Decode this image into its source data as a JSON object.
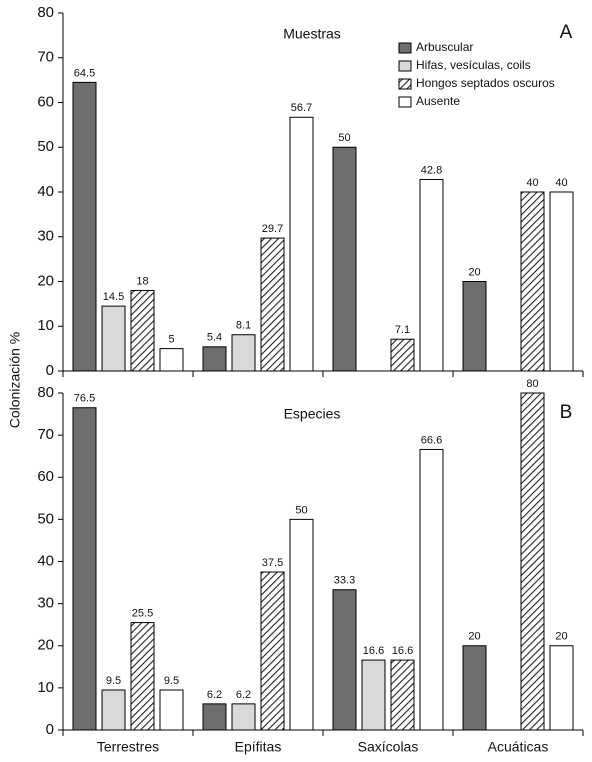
{
  "chart_data": [
    {
      "type": "bar",
      "title": "Muestras",
      "panel_label": "A",
      "ylabel": "Colonización %",
      "ylim": [
        0,
        80
      ],
      "yticks": [
        0,
        10,
        20,
        30,
        40,
        50,
        60,
        70,
        80
      ],
      "legend": "upper right",
      "series": [
        {
          "name": "Arbuscular",
          "color": "#6e6e6e",
          "values": [
            64.5,
            5.4,
            50,
            20
          ]
        },
        {
          "name": "Hifas, vesículas, coils",
          "color": "#d9d9d9",
          "values": [
            14.5,
            8.1,
            null,
            null
          ]
        },
        {
          "name": "Hongos septados oscuros",
          "color": "#222222",
          "pattern": "hatch",
          "values": [
            18,
            29.7,
            7.1,
            40
          ]
        },
        {
          "name": "Ausente",
          "color": "#ffffff",
          "values": [
            5,
            56.7,
            42.8,
            40
          ]
        }
      ]
    },
    {
      "type": "bar",
      "title": "Especies",
      "panel_label": "B",
      "categories": [
        "Terrestres",
        "Epífitas",
        "Saxícolas",
        "Acuáticas"
      ],
      "ylim": [
        0,
        80
      ],
      "yticks": [
        0,
        10,
        20,
        30,
        40,
        50,
        60,
        70,
        80
      ],
      "series": [
        {
          "name": "Arbuscular",
          "color": "#6e6e6e",
          "values": [
            76.5,
            6.2,
            33.3,
            20
          ]
        },
        {
          "name": "Hifas, vesículas, coils",
          "color": "#d9d9d9",
          "values": [
            9.5,
            6.2,
            16.6,
            null
          ]
        },
        {
          "name": "Hongos septados oscuros",
          "color": "#222222",
          "pattern": "hatch",
          "values": [
            25.5,
            37.5,
            16.6,
            80
          ]
        },
        {
          "name": "Ausente",
          "color": "#ffffff",
          "values": [
            9.5,
            50,
            66.6,
            20
          ]
        }
      ]
    }
  ]
}
